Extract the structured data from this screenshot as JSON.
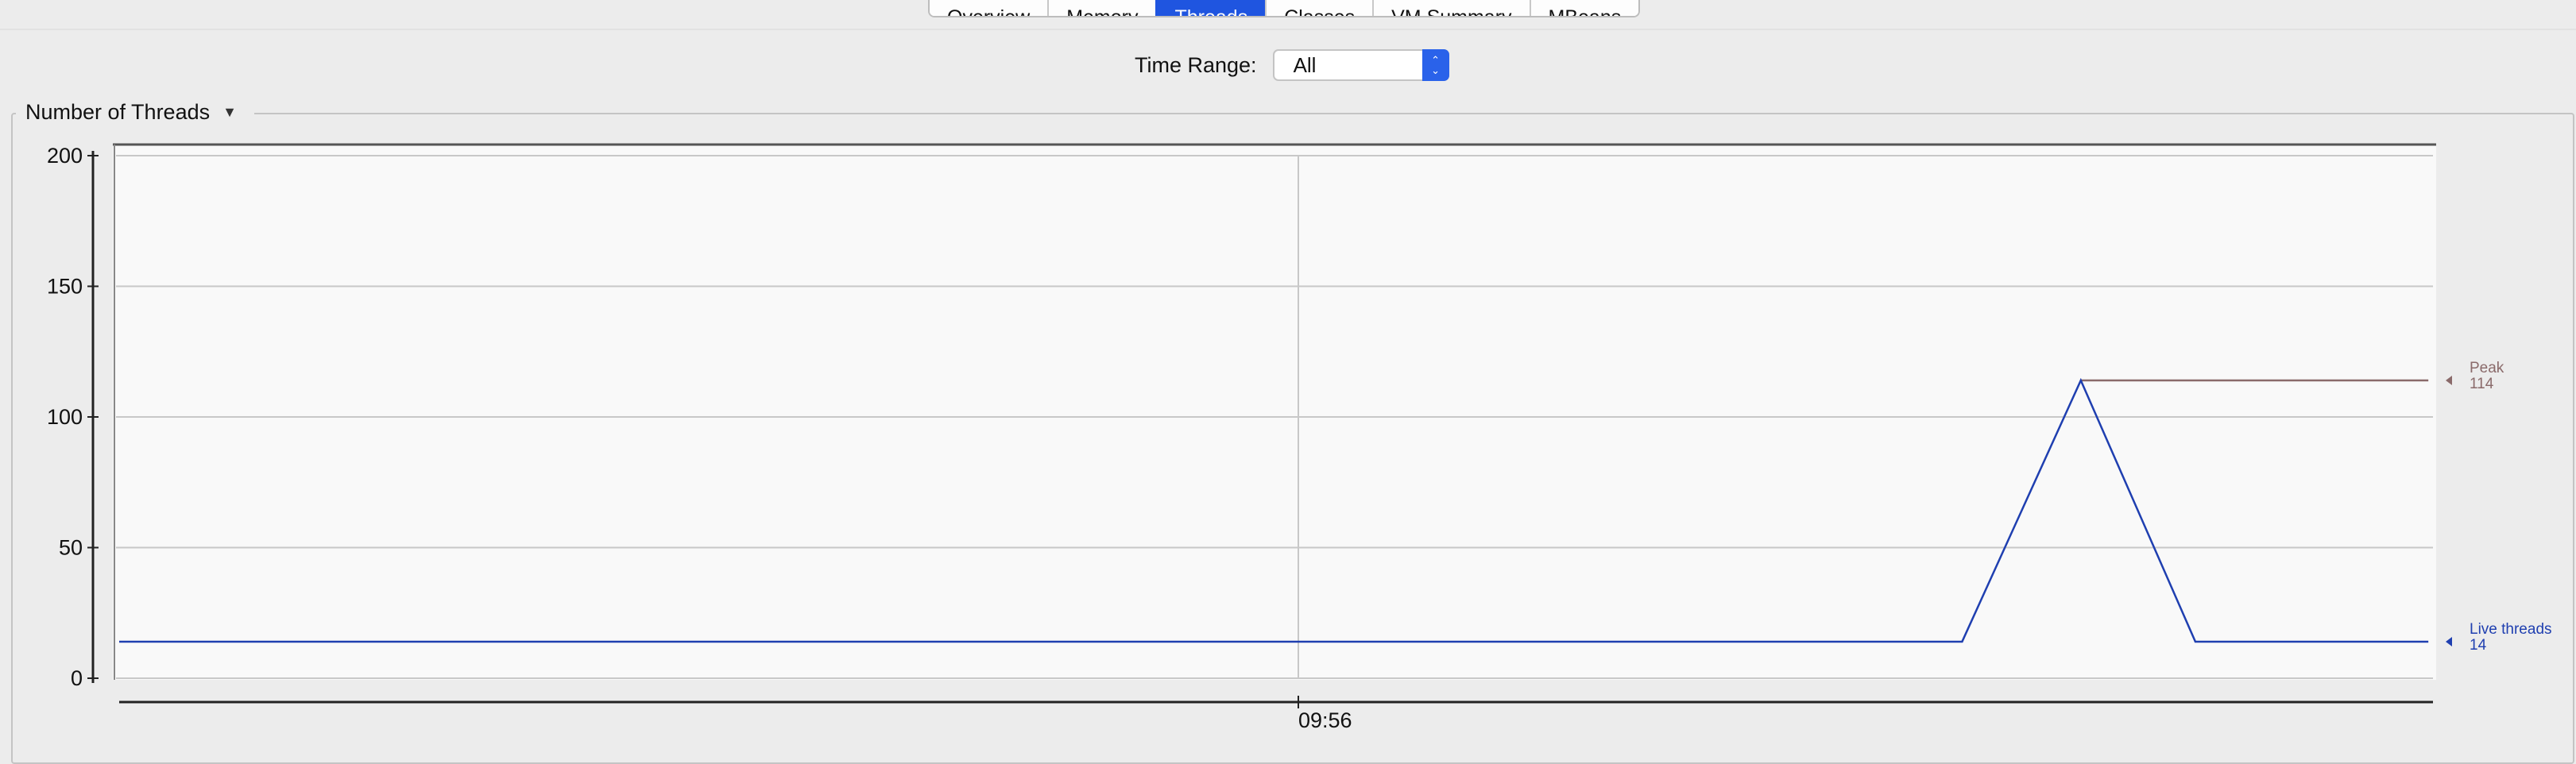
{
  "tabs": [
    {
      "label": "Overview",
      "active": false
    },
    {
      "label": "Memory",
      "active": false
    },
    {
      "label": "Threads",
      "active": true
    },
    {
      "label": "Classes",
      "active": false
    },
    {
      "label": "VM Summary",
      "active": false
    },
    {
      "label": "MBeans",
      "active": false
    }
  ],
  "time_range": {
    "label": "Time Range:",
    "value": "All"
  },
  "group": {
    "title": "Number of Threads"
  },
  "chart_data": {
    "type": "line",
    "ylim": [
      0,
      200
    ],
    "y_ticks": [
      "200",
      "150",
      "100",
      "50",
      "0"
    ],
    "x_ticks": [
      "09:56"
    ],
    "series": [
      {
        "name": "Peak",
        "color": "#8a6a6a",
        "x": [
          0.8478,
          0.998
        ],
        "values": [
          114,
          114
        ],
        "label_value": "114"
      },
      {
        "name": "Live threads",
        "color": "#1f3fb0",
        "x": [
          0,
          0.7965,
          0.8478,
          0.8973,
          0.998
        ],
        "values": [
          14,
          14,
          114,
          14,
          14
        ],
        "label_value": "14"
      }
    ]
  }
}
